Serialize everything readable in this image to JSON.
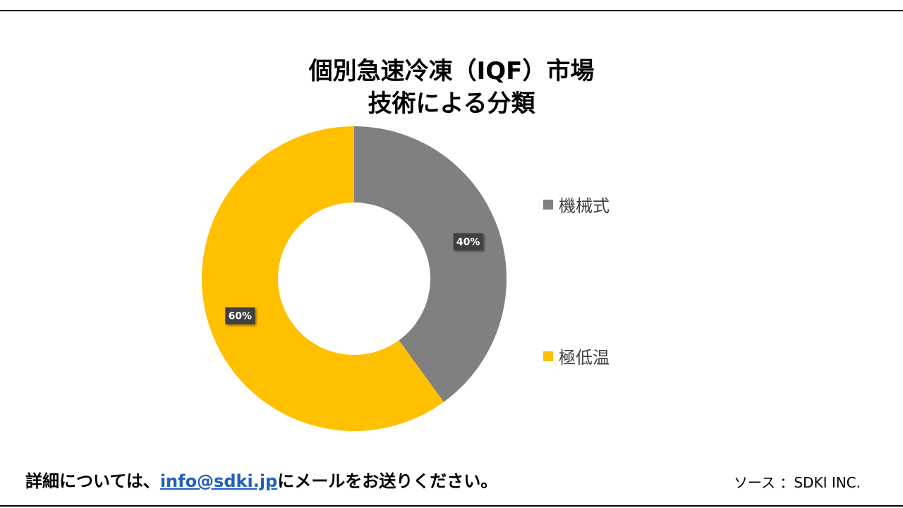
{
  "chart_data": {
    "type": "pie",
    "donut": true,
    "title_lines": [
      "個別急速冷凍（IQF）市場",
      "技術による分類"
    ],
    "slices": [
      {
        "name": "機械式",
        "value": 40,
        "label": "40%",
        "color": "#808080"
      },
      {
        "name": "極低温",
        "value": 60,
        "label": "60%",
        "color": "#FFC000"
      }
    ],
    "legend_position": "right"
  },
  "footer": {
    "contact_prefix": "詳細については、",
    "contact_email": "info@sdki.jp",
    "contact_suffix": "にメールをお送りください。",
    "source": "ソース ：SDKI INC."
  }
}
